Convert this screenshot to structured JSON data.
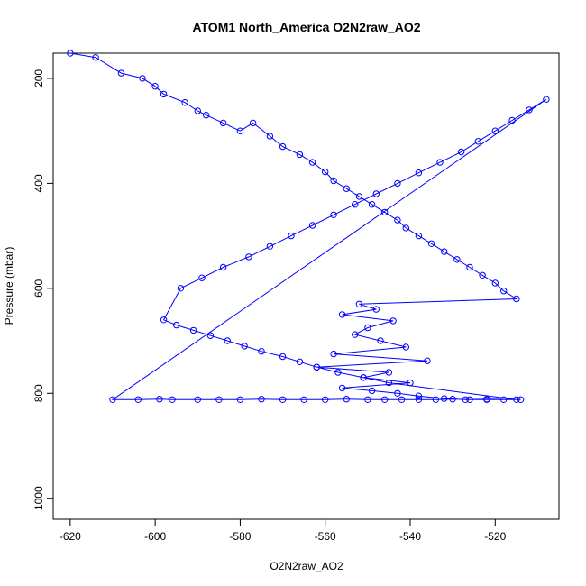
{
  "chart_data": {
    "type": "scatter",
    "title": "ATOM1 North_America O2N2raw_AO2",
    "xlabel": "O2N2raw_AO2",
    "ylabel": "Pressure (mbar)",
    "xlim": [
      -624,
      -505
    ],
    "ylim": [
      1040,
      152
    ],
    "y_inverted": true,
    "x_ticks": [
      -620,
      -600,
      -580,
      -560,
      -540,
      -520
    ],
    "x_tick_labels": [
      "-620",
      "-600",
      "-580",
      "-560",
      "-540",
      "-520"
    ],
    "y_ticks": [
      200,
      400,
      600,
      800,
      1000
    ],
    "y_tick_labels": [
      "200",
      "400",
      "600",
      "800",
      "1000"
    ],
    "grid": false,
    "legend": "none",
    "series": [
      {
        "style": "points-and-lines",
        "marker": "open-circle",
        "color": "#0000ff",
        "x": [
          -620,
          -614,
          -608,
          -603,
          -600,
          -598,
          -593,
          -590,
          -588,
          -584,
          -580,
          -577,
          -573,
          -570,
          -566,
          -563,
          -560,
          -558,
          -555,
          -552,
          -549,
          -546,
          -543,
          -541,
          -538,
          -535,
          -532,
          -529,
          -526,
          -523,
          -520,
          -518,
          -515,
          -552,
          -548,
          -556,
          -544,
          -550,
          -553,
          -547,
          -541,
          -558,
          -536,
          -562,
          -545,
          -551,
          -540,
          -556,
          -549,
          -543,
          -538,
          -532,
          -527,
          -522,
          -515,
          -545,
          -551,
          -557,
          -562,
          -566,
          -570,
          -575,
          -579,
          -583,
          -587,
          -591,
          -595,
          -598,
          -594,
          -589,
          -584,
          -578,
          -573,
          -568,
          -563,
          -558,
          -553,
          -548,
          -543,
          -538,
          -533,
          -528,
          -524,
          -520,
          -516,
          -512,
          -508,
          -610,
          -604,
          -599,
          -596,
          -590,
          -585,
          -580,
          -575,
          -570,
          -565,
          -560,
          -555,
          -550,
          -546,
          -542,
          -538,
          -534,
          -530,
          -526,
          -522,
          -518,
          -514
        ],
        "y": [
          152,
          160,
          190,
          200,
          215,
          230,
          246,
          262,
          270,
          285,
          300,
          285,
          310,
          330,
          345,
          360,
          378,
          395,
          410,
          425,
          440,
          455,
          470,
          485,
          500,
          515,
          530,
          545,
          560,
          575,
          590,
          605,
          620,
          630,
          640,
          650,
          662,
          675,
          688,
          700,
          712,
          725,
          738,
          750,
          760,
          770,
          780,
          790,
          795,
          800,
          805,
          810,
          812,
          811,
          812,
          780,
          770,
          760,
          750,
          740,
          730,
          720,
          710,
          700,
          690,
          680,
          670,
          660,
          600,
          580,
          560,
          540,
          520,
          500,
          480,
          460,
          440,
          420,
          400,
          380,
          360,
          340,
          320,
          300,
          280,
          260,
          240,
          812,
          812,
          811,
          812,
          812,
          812,
          812,
          811,
          812,
          812,
          812,
          811,
          812,
          812,
          812,
          812,
          812,
          811,
          812,
          812,
          812,
          812
        ]
      }
    ]
  }
}
